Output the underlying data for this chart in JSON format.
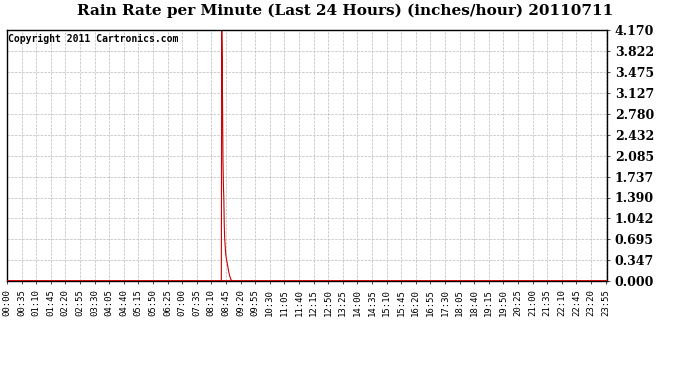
{
  "title": "Rain Rate per Minute (Last 24 Hours) (inches/hour) 20110711",
  "copyright": "Copyright 2011 Cartronics.com",
  "line_color": "#cc0000",
  "bg_color": "#ffffff",
  "plot_bg_color": "#ffffff",
  "grid_color": "#bbbbbb",
  "yticks": [
    0.0,
    0.347,
    0.695,
    1.042,
    1.39,
    1.737,
    2.085,
    2.432,
    2.78,
    3.127,
    3.475,
    3.822,
    4.17
  ],
  "ymax": 4.17,
  "ymin": 0.0,
  "num_minutes": 1440,
  "spike_shape": [
    [
      514,
      0.0
    ],
    [
      515,
      4.17
    ],
    [
      516,
      3.75
    ],
    [
      517,
      2.8
    ],
    [
      518,
      2.0
    ],
    [
      519,
      1.6
    ],
    [
      520,
      1.38
    ],
    [
      521,
      0.95
    ],
    [
      522,
      0.72
    ],
    [
      523,
      0.6
    ],
    [
      524,
      0.5
    ],
    [
      525,
      0.42
    ],
    [
      526,
      0.38
    ],
    [
      527,
      0.34
    ],
    [
      528,
      0.3
    ],
    [
      529,
      0.26
    ],
    [
      530,
      0.22
    ],
    [
      531,
      0.18
    ],
    [
      532,
      0.15
    ],
    [
      533,
      0.12
    ],
    [
      534,
      0.09
    ],
    [
      535,
      0.07
    ],
    [
      536,
      0.05
    ],
    [
      537,
      0.03
    ],
    [
      538,
      0.02
    ],
    [
      539,
      0.01
    ],
    [
      540,
      0.005
    ],
    [
      541,
      0.002
    ],
    [
      542,
      0.001
    ],
    [
      543,
      0.0
    ]
  ],
  "xtick_labels": [
    "00:00",
    "00:35",
    "01:10",
    "01:45",
    "02:20",
    "02:55",
    "03:30",
    "04:05",
    "04:40",
    "05:15",
    "05:50",
    "06:25",
    "07:00",
    "07:35",
    "08:10",
    "08:45",
    "09:20",
    "09:55",
    "10:30",
    "11:05",
    "11:40",
    "12:15",
    "12:50",
    "13:25",
    "14:00",
    "14:35",
    "15:10",
    "15:45",
    "16:20",
    "16:55",
    "17:30",
    "18:05",
    "18:40",
    "19:15",
    "19:50",
    "20:25",
    "21:00",
    "21:35",
    "22:10",
    "22:45",
    "23:20",
    "23:55"
  ],
  "xtick_positions_minutes": [
    0,
    35,
    70,
    105,
    140,
    175,
    210,
    245,
    280,
    315,
    350,
    385,
    420,
    455,
    490,
    525,
    560,
    595,
    630,
    665,
    700,
    735,
    770,
    805,
    840,
    875,
    910,
    945,
    980,
    1015,
    1050,
    1085,
    1120,
    1155,
    1190,
    1225,
    1260,
    1295,
    1330,
    1365,
    1400,
    1435
  ]
}
